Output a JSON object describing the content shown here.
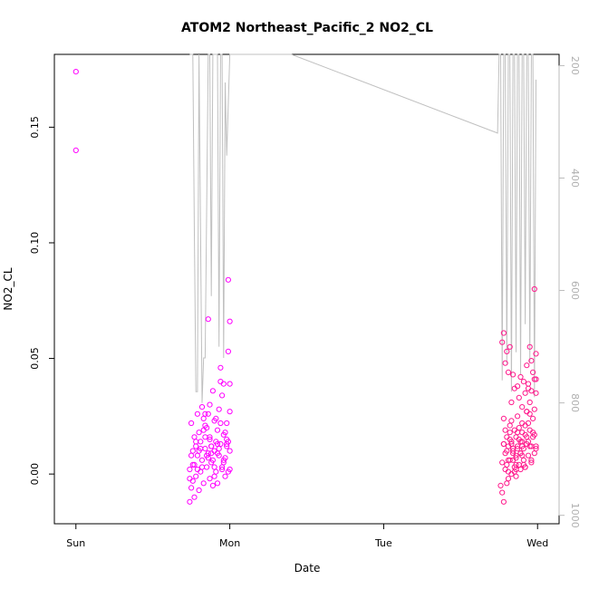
{
  "chart_data": {
    "type": "scatter",
    "title": "ATOM2 Northeast_Pacific_2 NO2_CL",
    "xlabel": "Date",
    "ylabel": "NO2_CL",
    "x_ticks": [
      "Sun",
      "Mon",
      "Tue",
      "Wed"
    ],
    "x_tick_days": [
      0,
      1,
      2,
      3
    ],
    "xlim_days": [
      -0.14,
      3.14
    ],
    "ylim": [
      -0.0215,
      0.1815
    ],
    "y_ticks": [
      0.0,
      0.05,
      0.1,
      0.15
    ],
    "y_tick_labels": [
      "0.00",
      "0.05",
      "0.10",
      "0.15"
    ],
    "y2_label": "",
    "y2_ticks": [
      200,
      400,
      600,
      800,
      1000
    ],
    "y2_tick_labels": [
      "200",
      "400",
      "600",
      "800",
      "1000"
    ],
    "y2lim": [
      1015,
      180
    ],
    "grid": false,
    "colors": {
      "points": "#ff00ff",
      "points_alt": "#ff1a8c",
      "secondary_line": "#c0c0c0",
      "axis": "#000000",
      "axis2": "#bbbbbb"
    },
    "series": [
      {
        "marker": "circle",
        "x": [
          0.0,
          0.0,
          0.74,
          0.74,
          0.75,
          0.75,
          0.76,
          0.76,
          0.77,
          0.77,
          0.78,
          0.78,
          0.79,
          0.79,
          0.8,
          0.8,
          0.81,
          0.81,
          0.82,
          0.82,
          0.83,
          0.83,
          0.84,
          0.84,
          0.85,
          0.85,
          0.86,
          0.86,
          0.87,
          0.87,
          0.87,
          0.88,
          0.88,
          0.89,
          0.89,
          0.9,
          0.9,
          0.91,
          0.91,
          0.92,
          0.92,
          0.93,
          0.93,
          0.94,
          0.94,
          0.95,
          0.95,
          0.96,
          0.96,
          0.97,
          0.97,
          0.98,
          0.98,
          0.99,
          0.99,
          0.99,
          1.0,
          1.0,
          1.0,
          1.0,
          0.98,
          0.96,
          0.94,
          0.92,
          0.9,
          0.88,
          0.86,
          0.84,
          0.82,
          0.8,
          0.78,
          0.76,
          0.75,
          0.77,
          0.79,
          0.81,
          0.83,
          0.85,
          0.87,
          0.89,
          0.91,
          0.93,
          0.95,
          0.97,
          0.99,
          0.74,
          0.86,
          0.88,
          0.9,
          0.92,
          0.94,
          0.96,
          0.98,
          1.0,
          0.84,
          2.76,
          2.77,
          2.77,
          2.78,
          2.78,
          2.78,
          2.79,
          2.79,
          2.79,
          2.8,
          2.8,
          2.8,
          2.81,
          2.81,
          2.81,
          2.82,
          2.82,
          2.82,
          2.83,
          2.83,
          2.83,
          2.84,
          2.84,
          2.84,
          2.85,
          2.85,
          2.85,
          2.86,
          2.86,
          2.86,
          2.87,
          2.87,
          2.87,
          2.88,
          2.88,
          2.88,
          2.89,
          2.89,
          2.89,
          2.9,
          2.9,
          2.9,
          2.91,
          2.91,
          2.91,
          2.92,
          2.92,
          2.92,
          2.93,
          2.93,
          2.93,
          2.94,
          2.94,
          2.94,
          2.95,
          2.95,
          2.95,
          2.96,
          2.96,
          2.96,
          2.97,
          2.97,
          2.97,
          2.98,
          2.98,
          2.98,
          2.99,
          2.99,
          2.99,
          2.78,
          2.8,
          2.82,
          2.84,
          2.86,
          2.88,
          2.9,
          2.92,
          2.94,
          2.96,
          2.98,
          2.79,
          2.81,
          2.83,
          2.85,
          2.87,
          2.89,
          2.91,
          2.93,
          2.95,
          2.97,
          2.99,
          2.77,
          2.8,
          2.83,
          2.86,
          2.89,
          2.92,
          2.95,
          2.98,
          2.81,
          2.84,
          2.87,
          2.9,
          2.93,
          2.96,
          2.99,
          2.78,
          2.82,
          2.86,
          2.9,
          2.94
        ],
        "y": [
          0.174,
          0.14,
          -0.012,
          0.002,
          -0.006,
          0.022,
          0.01,
          -0.003,
          0.016,
          0.004,
          -0.001,
          0.012,
          0.026,
          0.008,
          -0.007,
          0.018,
          0.001,
          0.014,
          0.029,
          0.006,
          -0.004,
          0.024,
          0.011,
          0.026,
          0.02,
          0.003,
          0.067,
          0.009,
          -0.002,
          0.03,
          0.016,
          0.005,
          0.012,
          0.036,
          -0.005,
          0.023,
          0.01,
          0.001,
          0.014,
          0.019,
          -0.004,
          0.028,
          0.008,
          0.046,
          0.013,
          0.034,
          0.003,
          0.017,
          0.039,
          0.007,
          -0.001,
          0.013,
          0.022,
          0.001,
          0.053,
          0.084,
          0.066,
          0.027,
          0.039,
          0.01,
          0.015,
          0.005,
          0.022,
          0.009,
          -0.001,
          0.012,
          0.007,
          0.016,
          0.003,
          0.01,
          0.014,
          0.004,
          0.008,
          -0.01,
          0.002,
          0.011,
          0.019,
          0.008,
          0.015,
          0.006,
          0.024,
          0.011,
          0.002,
          0.018,
          0.014,
          -0.002,
          0.026,
          0.009,
          0.003,
          0.013,
          0.04,
          0.006,
          0.012,
          0.002,
          0.021,
          -0.005,
          0.005,
          0.057,
          0.013,
          0.061,
          0.024,
          0.009,
          0.048,
          0.002,
          0.016,
          -0.004,
          0.053,
          0.001,
          0.044,
          0.012,
          0.006,
          0.021,
          0.055,
          0.031,
          0.0,
          0.014,
          0.01,
          0.043,
          0.006,
          0.037,
          0.019,
          0.003,
          0.008,
          0.016,
          -0.001,
          0.025,
          0.012,
          0.038,
          0.004,
          0.02,
          0.033,
          0.009,
          0.042,
          0.002,
          0.014,
          0.029,
          0.022,
          0.006,
          0.011,
          0.04,
          0.017,
          0.035,
          0.003,
          0.013,
          0.027,
          0.047,
          0.008,
          0.022,
          0.039,
          0.055,
          0.019,
          0.031,
          0.012,
          0.049,
          0.005,
          0.044,
          0.024,
          0.016,
          0.041,
          0.028,
          0.08,
          0.052,
          0.035,
          0.012,
          -0.012,
          0.004,
          0.018,
          0.011,
          0.002,
          0.015,
          0.008,
          0.003,
          0.014,
          0.006,
          0.017,
          0.019,
          0.006,
          0.013,
          0.001,
          0.011,
          0.009,
          0.004,
          0.016,
          0.012,
          0.018,
          0.011,
          -0.008,
          0.01,
          0.023,
          0.007,
          0.014,
          0.021,
          0.026,
          0.009,
          -0.002,
          0.009,
          0.018,
          0.012,
          0.027,
          0.036,
          0.041,
          0.013,
          0.015,
          0.004,
          0.018,
          0.037
        ]
      }
    ],
    "secondary_line": {
      "x": [
        0.74,
        0.76,
        0.77,
        0.78,
        0.79,
        0.8,
        0.82,
        0.83,
        0.84,
        0.86,
        0.87,
        0.88,
        0.89,
        0.9,
        0.91,
        0.92,
        0.93,
        0.94,
        0.95,
        0.96,
        0.97,
        0.98,
        1.0,
        1.02,
        1.05,
        1.4,
        2.74,
        2.75,
        2.76,
        2.77,
        2.78,
        2.79,
        2.8,
        2.81,
        2.82,
        2.83,
        2.84,
        2.85,
        2.86,
        2.87,
        2.88,
        2.89,
        2.9,
        2.91,
        2.92,
        2.93,
        2.94,
        2.95,
        2.96,
        2.97,
        2.98,
        2.99
      ],
      "y": [
        180,
        180,
        500,
        780,
        780,
        180,
        800,
        720,
        720,
        180,
        180,
        610,
        180,
        180,
        180,
        180,
        700,
        180,
        180,
        720,
        230,
        360,
        180,
        180,
        180,
        180,
        320,
        180,
        180,
        760,
        180,
        180,
        730,
        180,
        180,
        780,
        180,
        180,
        710,
        180,
        180,
        750,
        180,
        180,
        660,
        180,
        180,
        730,
        180,
        180,
        790,
        225
      ]
    }
  }
}
